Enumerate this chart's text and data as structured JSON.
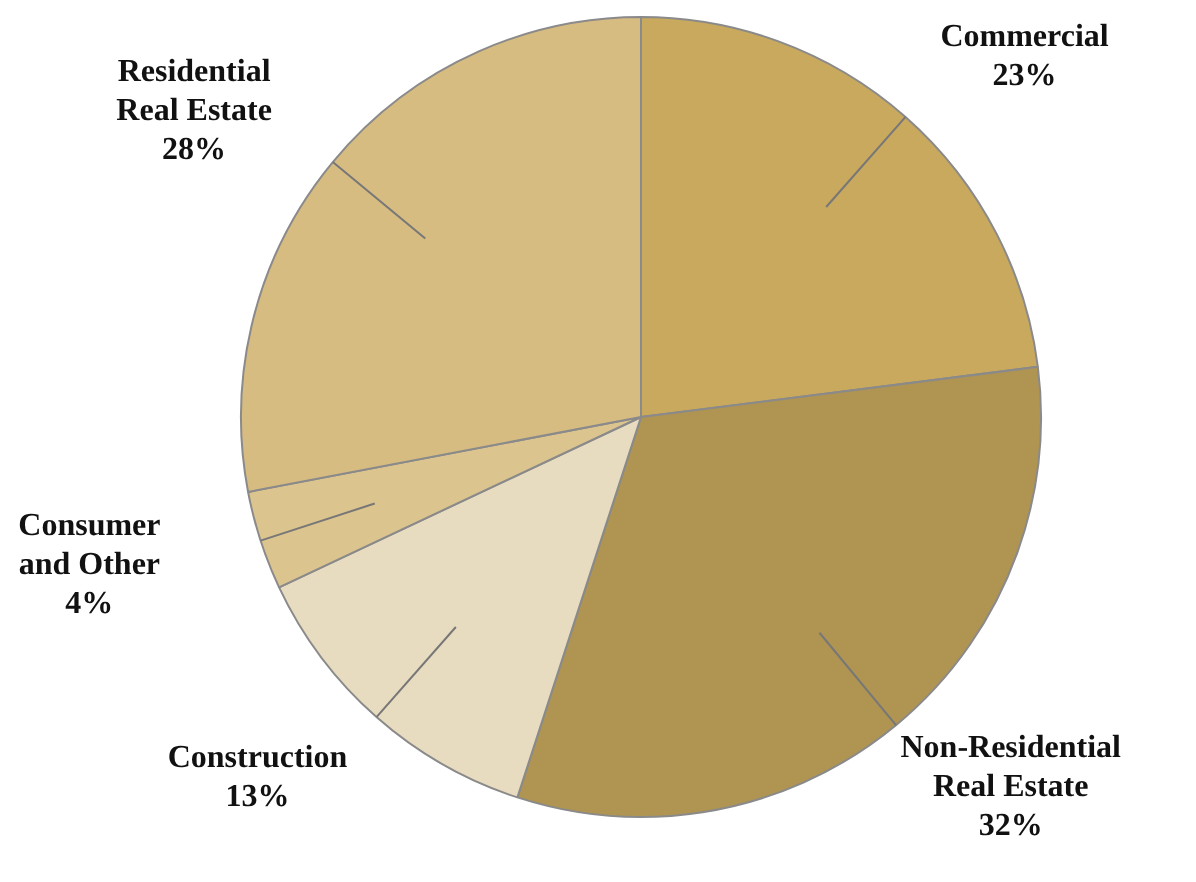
{
  "chart_data": {
    "type": "pie",
    "categories": [
      "Commercial",
      "Non-Residential\nReal Estate",
      "Construction",
      "Consumer\nand Other",
      "Residential\nReal Estate"
    ],
    "values": [
      23,
      32,
      13,
      4,
      28
    ],
    "colors": [
      "#c9a95e",
      "#b09452",
      "#e8dcc0",
      "#dcc48e",
      "#d7bc82"
    ],
    "value_labels": [
      "23%",
      "32%",
      "13%",
      "4%",
      "28%"
    ]
  }
}
